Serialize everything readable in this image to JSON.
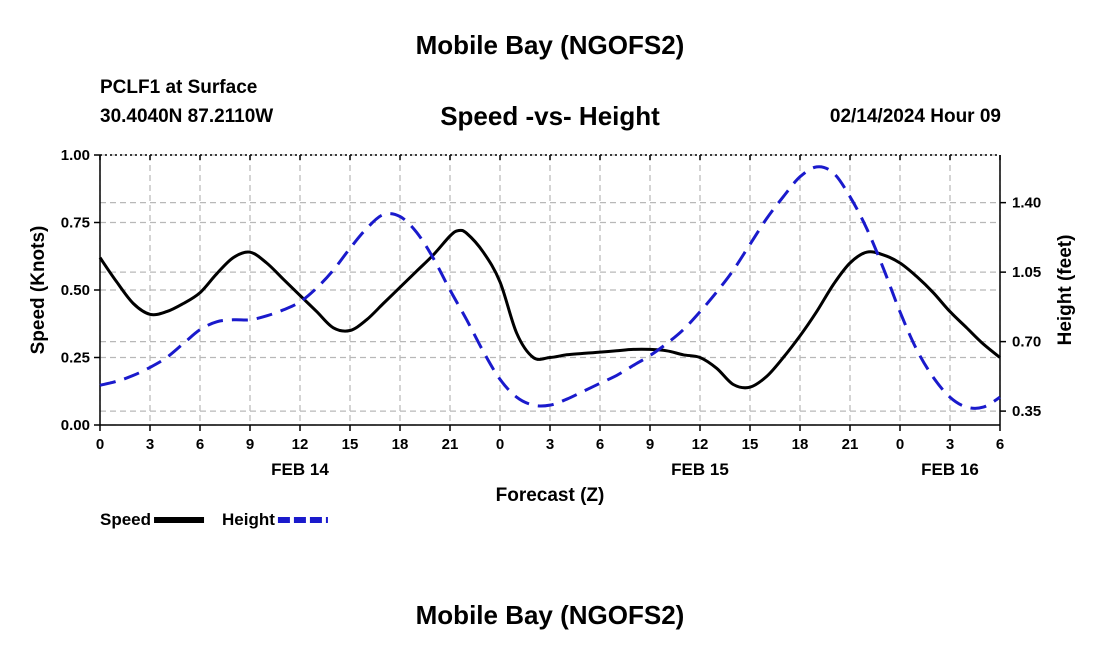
{
  "header": {
    "title": "Mobile Bay (NGOFS2)",
    "station": "PCLF1 at Surface",
    "coords": "30.4040N  87.2110W",
    "subtitle": "Speed -vs- Height",
    "datetime": "02/14/2024 Hour 09"
  },
  "footer": {
    "title": "Mobile Bay (NGOFS2)"
  },
  "chart_data": {
    "type": "line",
    "title": "Speed -vs- Height",
    "xlabel": "Forecast (Z)",
    "ylabel": "Speed (Knots)",
    "y2label": "Height (feet)",
    "xlim": [
      0,
      54
    ],
    "ylim": [
      0,
      1.0
    ],
    "y2lim": [
      0.28,
      1.64
    ],
    "x_ticks": [
      0,
      3,
      6,
      9,
      12,
      15,
      18,
      21,
      24,
      27,
      30,
      33,
      36,
      39,
      42,
      45,
      48,
      51,
      54
    ],
    "x_tick_labels": [
      "0",
      "3",
      "6",
      "9",
      "12",
      "15",
      "18",
      "21",
      "0",
      "3",
      "6",
      "9",
      "12",
      "15",
      "18",
      "21",
      "0",
      "3",
      "6"
    ],
    "date_labels": [
      {
        "x": 12,
        "label": "FEB 14"
      },
      {
        "x": 36,
        "label": "FEB 15"
      },
      {
        "x": 51,
        "label": "FEB 16"
      }
    ],
    "y_ticks": [
      0.0,
      0.25,
      0.5,
      0.75,
      1.0
    ],
    "y_tick_labels": [
      "0.00",
      "0.25",
      "0.50",
      "0.75",
      "1.00"
    ],
    "y2_ticks": [
      0.35,
      0.7,
      1.05,
      1.4
    ],
    "y2_tick_labels": [
      "0.35",
      "0.70",
      "1.05",
      "1.40"
    ],
    "grid": true,
    "legend_position": "bottom-left",
    "series": [
      {
        "name": "Speed",
        "axis": "left",
        "color": "#000000",
        "dash": "solid",
        "x": [
          0,
          1,
          2,
          3,
          4,
          5,
          6,
          7,
          8,
          9,
          10,
          11,
          12,
          13,
          14,
          15,
          16,
          17,
          18,
          19,
          20,
          21,
          21.5,
          22,
          23,
          24,
          25,
          26,
          27,
          28,
          29,
          30,
          31,
          32,
          33,
          34,
          35,
          36,
          37,
          38,
          39,
          40,
          41,
          42,
          43,
          44,
          45,
          46,
          47,
          48,
          49,
          50,
          51,
          52,
          53,
          54
        ],
        "values": [
          0.62,
          0.53,
          0.45,
          0.41,
          0.42,
          0.45,
          0.49,
          0.56,
          0.62,
          0.64,
          0.6,
          0.54,
          0.48,
          0.42,
          0.36,
          0.35,
          0.39,
          0.45,
          0.51,
          0.57,
          0.63,
          0.7,
          0.72,
          0.71,
          0.64,
          0.53,
          0.34,
          0.25,
          0.25,
          0.26,
          0.265,
          0.27,
          0.275,
          0.28,
          0.28,
          0.275,
          0.26,
          0.25,
          0.21,
          0.15,
          0.14,
          0.18,
          0.25,
          0.33,
          0.42,
          0.52,
          0.6,
          0.64,
          0.63,
          0.6,
          0.55,
          0.49,
          0.42,
          0.36,
          0.3,
          0.25
        ]
      },
      {
        "name": "Height",
        "axis": "right",
        "color": "#1a1acc",
        "dash": "dashed",
        "x": [
          0,
          1,
          2,
          3,
          4,
          5,
          6,
          7,
          8,
          9,
          10,
          11,
          12,
          13,
          14,
          15,
          16,
          17,
          18,
          19,
          20,
          21,
          22,
          23,
          24,
          25,
          26,
          27,
          28,
          29,
          30,
          31,
          32,
          33,
          34,
          35,
          36,
          37,
          38,
          39,
          40,
          41,
          42,
          43,
          44,
          45,
          46,
          47,
          48,
          49,
          50,
          51,
          52,
          53,
          54
        ],
        "values": [
          0.48,
          0.5,
          0.53,
          0.57,
          0.62,
          0.69,
          0.76,
          0.8,
          0.81,
          0.81,
          0.83,
          0.86,
          0.9,
          0.97,
          1.06,
          1.17,
          1.27,
          1.34,
          1.33,
          1.25,
          1.12,
          0.96,
          0.81,
          0.65,
          0.51,
          0.42,
          0.38,
          0.38,
          0.41,
          0.45,
          0.49,
          0.53,
          0.58,
          0.63,
          0.69,
          0.76,
          0.85,
          0.95,
          1.06,
          1.19,
          1.32,
          1.43,
          1.53,
          1.58,
          1.55,
          1.43,
          1.27,
          1.07,
          0.85,
          0.66,
          0.52,
          0.42,
          0.37,
          0.37,
          0.42
        ]
      }
    ]
  }
}
